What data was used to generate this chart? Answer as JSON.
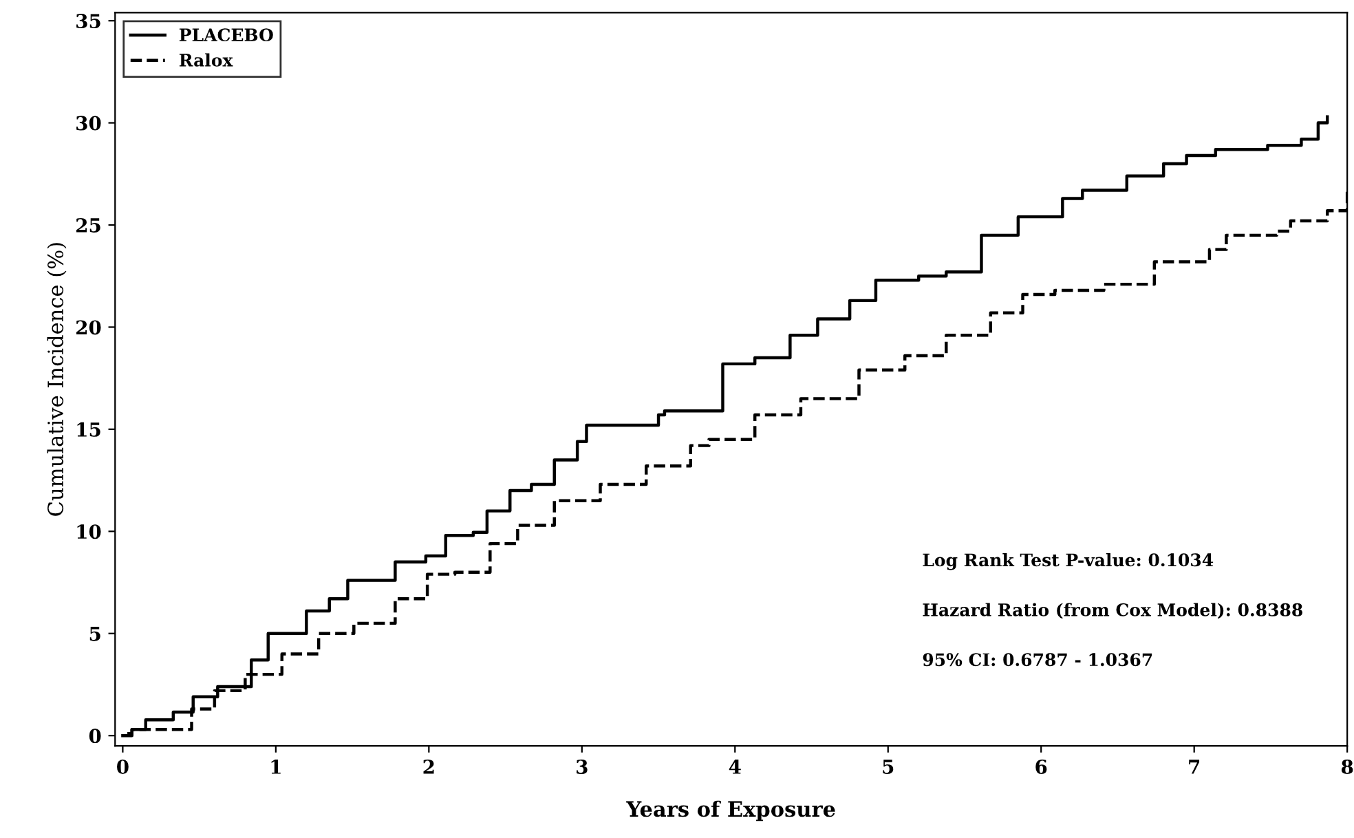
{
  "chart_data": {
    "type": "step",
    "xlabel": "Years of Exposure",
    "ylabel": "Cumulative Incidence (%)",
    "xlim": [
      -0.05,
      8
    ],
    "ylim": [
      -0.5,
      35.4
    ],
    "xticks": [
      0,
      1,
      2,
      3,
      4,
      5,
      6,
      7,
      8
    ],
    "yticks": [
      0,
      5,
      10,
      15,
      20,
      25,
      30,
      35
    ],
    "grid": false,
    "legend": "top left",
    "marker": "none",
    "annotations": [
      "Log Rank Test P-value: 0.1034",
      "Hazard Ratio (from Cox Model): 0.8388",
      "95% CI: 0.6787 - 1.0367"
    ],
    "series": [
      {
        "name": "PLACEBO",
        "color": "#000000",
        "line_style": "solid",
        "x": [
          0,
          0.06,
          0.15,
          0.33,
          0.46,
          0.62,
          0.77,
          0.84,
          0.95,
          1.07,
          1.2,
          1.35,
          1.47,
          1.65,
          1.78,
          1.98,
          2.11,
          2.29,
          2.38,
          2.53,
          2.67,
          2.82,
          2.97,
          3.03,
          3.43,
          3.5,
          3.54,
          3.92,
          4.13,
          4.36,
          4.54,
          4.75,
          4.92,
          5.2,
          5.38,
          5.61,
          5.85,
          6.14,
          6.27,
          6.5,
          6.56,
          6.8,
          6.95,
          7.14,
          7.48,
          7.7,
          7.81,
          7.87
        ],
        "values": [
          0,
          0.3,
          0.77,
          1.15,
          1.9,
          2.4,
          2.4,
          3.7,
          5.0,
          5.0,
          6.1,
          6.7,
          7.6,
          7.6,
          8.5,
          8.8,
          9.8,
          9.95,
          11.0,
          12.0,
          12.3,
          13.5,
          14.4,
          15.2,
          15.2,
          15.7,
          15.9,
          18.2,
          18.5,
          19.6,
          20.4,
          21.3,
          22.3,
          22.5,
          22.7,
          24.5,
          25.4,
          26.3,
          26.7,
          26.7,
          27.4,
          28.0,
          28.4,
          28.7,
          28.9,
          29.2,
          30.0,
          30.3
        ]
      },
      {
        "name": "Ralox",
        "color": "#000000",
        "line_style": "dashed",
        "x": [
          0.03,
          0.06,
          0.45,
          0.6,
          0.8,
          1.04,
          1.28,
          1.51,
          1.78,
          1.99,
          2.17,
          2.4,
          2.58,
          2.82,
          3.12,
          3.42,
          3.71,
          3.83,
          4.13,
          4.43,
          4.81,
          5.11,
          5.38,
          5.67,
          5.88,
          6.09,
          6.41,
          6.74,
          7.1,
          7.21,
          7.54,
          7.63,
          7.87,
          8.0
        ],
        "values": [
          0.1,
          0.3,
          1.3,
          2.2,
          3.0,
          4.0,
          5.0,
          5.5,
          6.7,
          7.9,
          8.0,
          9.4,
          10.3,
          11.5,
          12.3,
          13.2,
          14.2,
          14.5,
          15.7,
          16.5,
          17.9,
          18.6,
          19.6,
          20.7,
          21.6,
          21.8,
          22.1,
          23.2,
          23.8,
          24.5,
          24.7,
          25.2,
          25.7,
          26.7
        ]
      }
    ]
  }
}
